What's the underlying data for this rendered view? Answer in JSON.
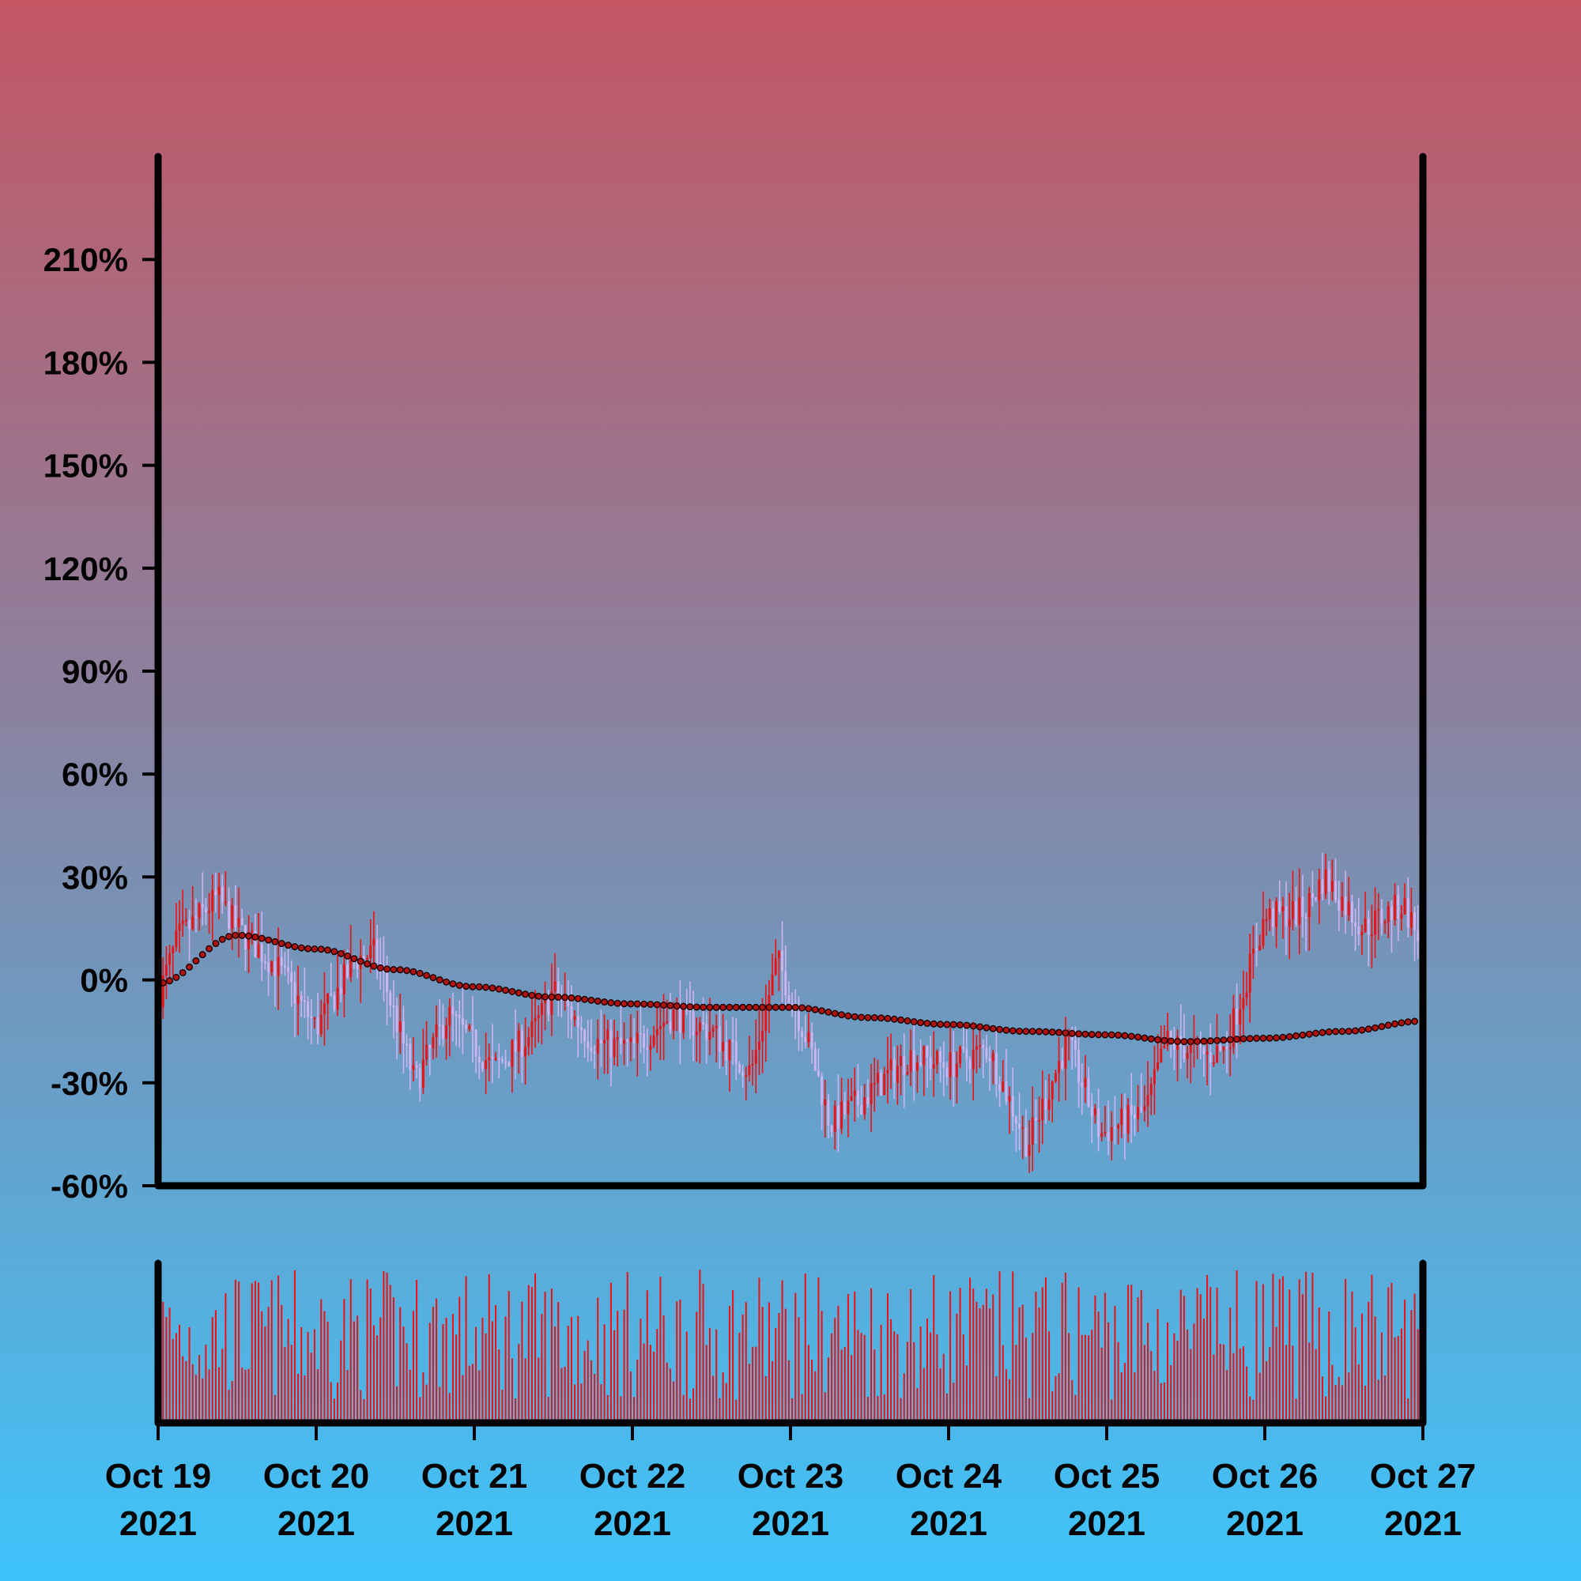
{
  "chart_data": {
    "type": "candlestick",
    "price_panel": {
      "y_unit": "%",
      "ylim": [
        -60,
        240
      ],
      "y_ticks": [
        "210%",
        "180%",
        "150%",
        "120%",
        "90%",
        "60%",
        "30%",
        "0%",
        "-30%",
        "-60%"
      ],
      "y_tick_values": [
        210,
        180,
        150,
        120,
        90,
        60,
        30,
        0,
        -30,
        -60
      ],
      "grid": false,
      "candle_interval_hours": 0.5,
      "candles_per_day": 48,
      "colors": {
        "up": "#ee1111",
        "down": "#ccb4f2",
        "moving_average": "#b01010"
      },
      "close_anchors": [
        [
          "2021-10-19 00:00",
          -5
        ],
        [
          "2021-10-19 03:00",
          12
        ],
        [
          "2021-10-19 09:00",
          24
        ],
        [
          "2021-10-19 12:00",
          15
        ],
        [
          "2021-10-19 18:00",
          4
        ],
        [
          "2021-10-20 00:00",
          -14
        ],
        [
          "2021-10-20 06:00",
          6
        ],
        [
          "2021-10-20 09:00",
          8
        ],
        [
          "2021-10-20 15:00",
          -30
        ],
        [
          "2021-10-20 20:00",
          -10
        ],
        [
          "2021-10-21 03:00",
          -26
        ],
        [
          "2021-10-21 09:00",
          -15
        ],
        [
          "2021-10-21 12:00",
          -3
        ],
        [
          "2021-10-21 18:00",
          -18
        ],
        [
          "2021-10-22 00:00",
          -20
        ],
        [
          "2021-10-22 06:00",
          -10
        ],
        [
          "2021-10-22 12:00",
          -15
        ],
        [
          "2021-10-22 18:00",
          -27
        ],
        [
          "2021-10-22 22:00",
          6
        ],
        [
          "2021-10-23 03:00",
          -20
        ],
        [
          "2021-10-23 06:00",
          -42
        ],
        [
          "2021-10-23 12:00",
          -33
        ],
        [
          "2021-10-23 18:00",
          -22
        ],
        [
          "2021-10-24 00:00",
          -25
        ],
        [
          "2021-10-24 06:00",
          -20
        ],
        [
          "2021-10-24 12:00",
          -48
        ],
        [
          "2021-10-24 18:00",
          -18
        ],
        [
          "2021-10-24 23:00",
          -45
        ],
        [
          "2021-10-25 06:00",
          -38
        ],
        [
          "2021-10-25 09:00",
          -18
        ],
        [
          "2021-10-25 15:00",
          -22
        ],
        [
          "2021-10-25 18:00",
          -20
        ],
        [
          "2021-10-26 00:00",
          18
        ],
        [
          "2021-10-26 06:00",
          20
        ],
        [
          "2021-10-26 09:00",
          30
        ],
        [
          "2021-10-26 15:00",
          15
        ],
        [
          "2021-10-26 21:00",
          22
        ],
        [
          "2021-10-27 00:00",
          10
        ]
      ],
      "moving_average": {
        "style": "dotted",
        "points": [
          [
            "2021-10-19 00:00",
            -1
          ],
          [
            "2021-10-19 12:00",
            13
          ],
          [
            "2021-10-20 00:00",
            9
          ],
          [
            "2021-10-20 12:00",
            3
          ],
          [
            "2021-10-21 00:00",
            -2
          ],
          [
            "2021-10-21 12:00",
            -5
          ],
          [
            "2021-10-22 00:00",
            -7
          ],
          [
            "2021-10-22 12:00",
            -8
          ],
          [
            "2021-10-23 00:00",
            -8
          ],
          [
            "2021-10-23 12:00",
            -11
          ],
          [
            "2021-10-24 00:00",
            -13
          ],
          [
            "2021-10-24 12:00",
            -15
          ],
          [
            "2021-10-25 00:00",
            -16
          ],
          [
            "2021-10-25 12:00",
            -18
          ],
          [
            "2021-10-26 00:00",
            -17
          ],
          [
            "2021-10-26 12:00",
            -15
          ],
          [
            "2021-10-27 00:00",
            -12
          ]
        ]
      }
    },
    "volume_panel": {
      "bar_color": "#ee1111"
    },
    "x_ticks": [
      {
        "date": "2021-10-19",
        "line1": "Oct 19",
        "line2": "2021"
      },
      {
        "date": "2021-10-20",
        "line1": "Oct 20",
        "line2": "2021"
      },
      {
        "date": "2021-10-21",
        "line1": "Oct 21",
        "line2": "2021"
      },
      {
        "date": "2021-10-22",
        "line1": "Oct 22",
        "line2": "2021"
      },
      {
        "date": "2021-10-23",
        "line1": "Oct 23",
        "line2": "2021"
      },
      {
        "date": "2021-10-24",
        "line1": "Oct 24",
        "line2": "2021"
      },
      {
        "date": "2021-10-25",
        "line1": "Oct 25",
        "line2": "2021"
      },
      {
        "date": "2021-10-26",
        "line1": "Oct 26",
        "line2": "2021"
      },
      {
        "date": "2021-10-27",
        "line1": "Oct 27",
        "line2": "2021"
      }
    ],
    "xlim": [
      "2021-10-19",
      "2021-10-27"
    ]
  }
}
